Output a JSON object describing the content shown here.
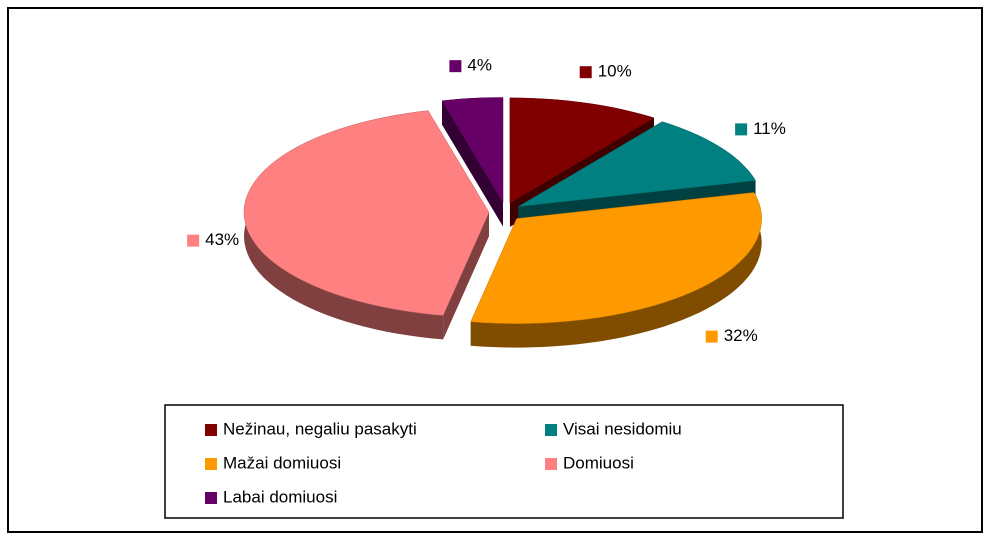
{
  "chart_data": {
    "type": "pie",
    "categories": [
      "Nežinau, negaliu pasakyti",
      "Visai nesidomiu",
      "Mažai domiuosi",
      "Domiuosi",
      "Labai domiuosi"
    ],
    "values": [
      10,
      11,
      32,
      43,
      4
    ],
    "value_labels": [
      "10%",
      "11%",
      "32%",
      "43%",
      "4%"
    ],
    "colors": [
      "#800000",
      "#008080",
      "#ff9900",
      "#ff8080",
      "#660066"
    ],
    "legend": "bottom"
  }
}
